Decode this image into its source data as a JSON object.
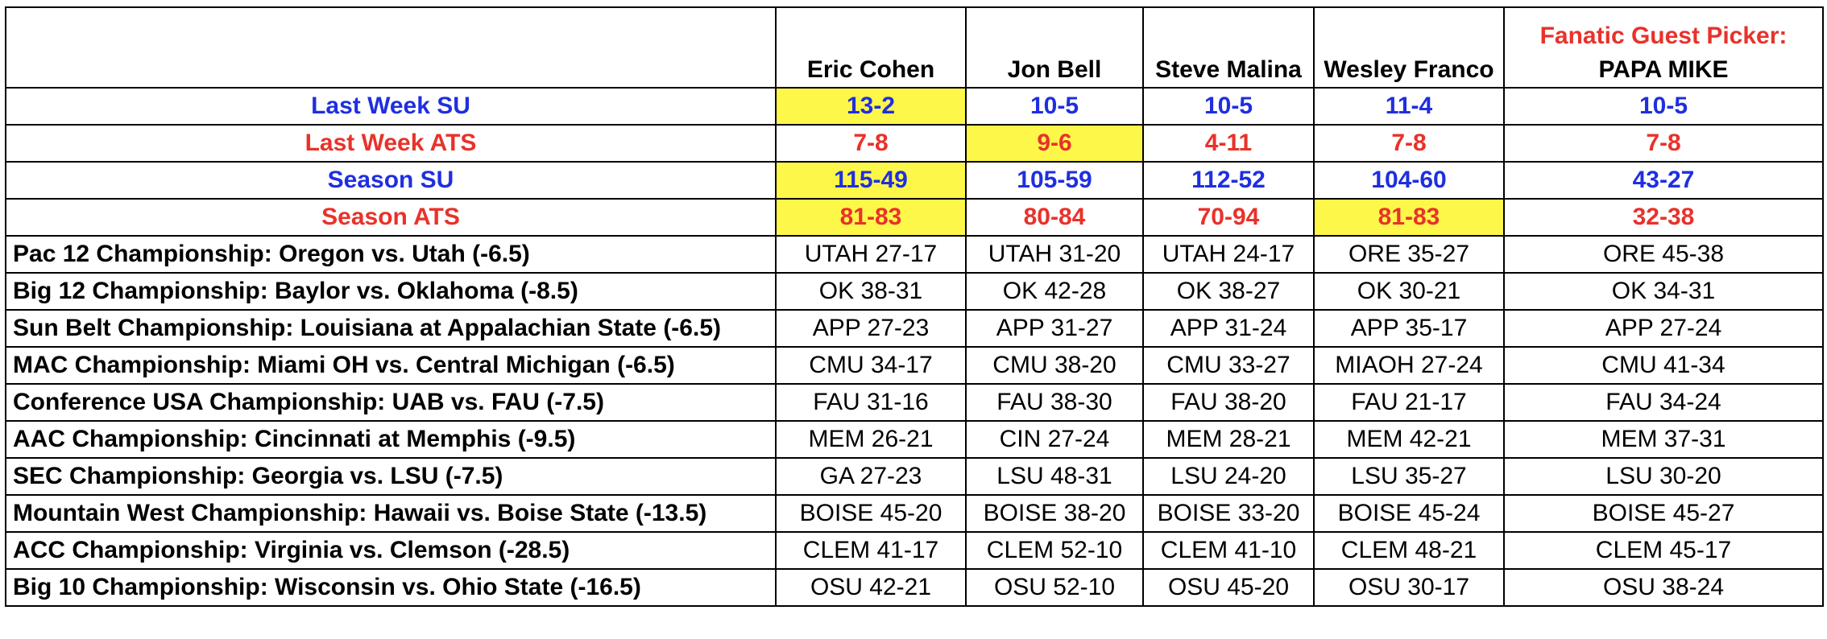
{
  "headers": {
    "pickers": [
      "Eric Cohen",
      "Jon Bell",
      "Steve Malina",
      "Wesley Franco"
    ],
    "guest_title": "Fanatic Guest Picker:",
    "guest_name": "PAPA MIKE"
  },
  "stats": [
    {
      "label": "Last Week SU",
      "color": "blue",
      "values": [
        "13-2",
        "10-5",
        "10-5",
        "11-4",
        "10-5"
      ],
      "highlight": [
        true,
        false,
        false,
        false,
        false
      ]
    },
    {
      "label": "Last Week ATS",
      "color": "red",
      "values": [
        "7-8",
        "9-6",
        "4-11",
        "7-8",
        "7-8"
      ],
      "highlight": [
        false,
        true,
        false,
        false,
        false
      ]
    },
    {
      "label": "Season SU",
      "color": "blue",
      "values": [
        "115-49",
        "105-59",
        "112-52",
        "104-60",
        "43-27"
      ],
      "highlight": [
        true,
        false,
        false,
        false,
        false
      ]
    },
    {
      "label": "Season ATS",
      "color": "red",
      "values": [
        "81-83",
        "80-84",
        "70-94",
        "81-83",
        "32-38"
      ],
      "highlight": [
        true,
        false,
        false,
        true,
        false
      ]
    }
  ],
  "games": [
    {
      "label": "Pac 12 Championship: Oregon vs. Utah (-6.5)",
      "picks": [
        "UTAH 27-17",
        "UTAH 31-20",
        "UTAH 24-17",
        "ORE 35-27",
        "ORE 45-38"
      ]
    },
    {
      "label": "Big 12 Championship: Baylor vs. Oklahoma (-8.5)",
      "picks": [
        "OK 38-31",
        "OK 42-28",
        "OK 38-27",
        "OK 30-21",
        "OK 34-31"
      ]
    },
    {
      "label": "Sun Belt Championship: Louisiana at Appalachian State (-6.5)",
      "picks": [
        "APP 27-23",
        "APP 31-27",
        "APP 31-24",
        "APP 35-17",
        "APP 27-24"
      ]
    },
    {
      "label": "MAC Championship: Miami OH vs. Central Michigan (-6.5)",
      "picks": [
        "CMU 34-17",
        "CMU 38-20",
        "CMU 33-27",
        "MIAOH 27-24",
        "CMU 41-34"
      ]
    },
    {
      "label": "Conference USA Championship: UAB vs. FAU (-7.5)",
      "picks": [
        "FAU 31-16",
        "FAU 38-30",
        "FAU 38-20",
        "FAU 21-17",
        "FAU 34-24"
      ]
    },
    {
      "label": "AAC Championship: Cincinnati at Memphis (-9.5)",
      "picks": [
        "MEM 26-21",
        "CIN 27-24",
        "MEM 28-21",
        "MEM 42-21",
        "MEM 37-31"
      ]
    },
    {
      "label": "SEC Championship: Georgia vs. LSU (-7.5)",
      "picks": [
        "GA 27-23",
        "LSU 48-31",
        "LSU 24-20",
        "LSU 35-27",
        "LSU 30-20"
      ]
    },
    {
      "label": "Mountain West Championship: Hawaii vs. Boise State (-13.5)",
      "picks": [
        "BOISE 45-20",
        "BOISE 38-20",
        "BOISE 33-20",
        "BOISE 45-24",
        "BOISE 45-27"
      ]
    },
    {
      "label": "ACC Championship: Virginia vs. Clemson (-28.5)",
      "picks": [
        "CLEM 41-17",
        "CLEM 52-10",
        "CLEM 41-10",
        "CLEM 48-21",
        "CLEM 45-17"
      ]
    },
    {
      "label": "Big 10 Championship: Wisconsin vs. Ohio State (-16.5)",
      "picks": [
        "OSU 42-21",
        "OSU 52-10",
        "OSU 45-20",
        "OSU 30-17",
        "OSU 38-24"
      ]
    }
  ],
  "colors": {
    "blue": "#1f2fe0",
    "red": "#e8322a",
    "highlight": "#fdf74a"
  }
}
